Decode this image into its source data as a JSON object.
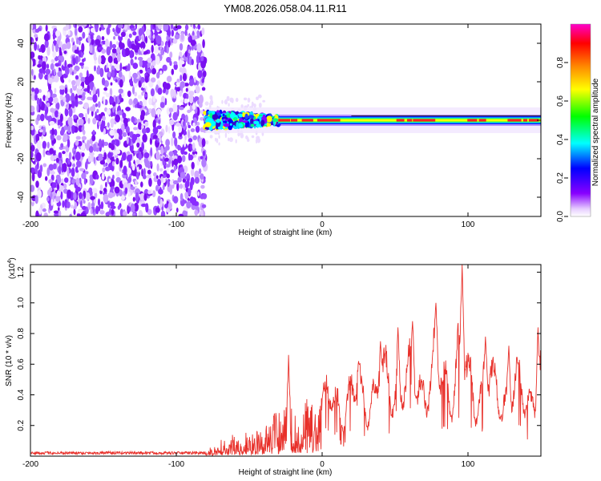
{
  "title": "YM08.2026.058.04.11.R11",
  "spectrogram": {
    "xlabel": "Height of straight line (km)",
    "ylabel": "Frequency (Hz)",
    "xlim": [
      -200,
      150
    ],
    "ylim": [
      -50,
      50
    ],
    "xticks": [
      -200,
      -100,
      0,
      100
    ],
    "xtick_labels": [
      "-200",
      "-100",
      "0",
      "100"
    ],
    "yticks": [
      -40,
      -20,
      0,
      20,
      40
    ],
    "ytick_labels": [
      "-40",
      "-20",
      "0",
      "20",
      "40"
    ],
    "noise_region_end": -80,
    "signal_band": {
      "start": -80,
      "center_freq": 0
    },
    "colorbar": {
      "label": "Normalized spectral amplitude",
      "range": [
        0,
        1
      ],
      "ticks": [
        0.0,
        0.2,
        0.4,
        0.6,
        0.8
      ],
      "tick_labels": [
        "0.0",
        "0.2",
        "0.4",
        "0.6",
        "0.8"
      ],
      "colors": [
        "#ffffff",
        "#8800ff",
        "#0000ff",
        "#00ffff",
        "#00ff00",
        "#ffff00",
        "#ff8800",
        "#ff0000",
        "#ff00cc"
      ]
    }
  },
  "snr_plot": {
    "type": "line",
    "xlabel": "Height of straight line (km)",
    "ylabel": "SNR (10 * v/v)",
    "multiplier_label": "(x10",
    "multiplier_exponent": "4",
    "xlim": [
      -200,
      150
    ],
    "ylim": [
      0,
      1.25
    ],
    "xticks": [
      -200,
      -100,
      0,
      100
    ],
    "xtick_labels": [
      "-200",
      "-100",
      "0",
      "100"
    ],
    "yticks": [
      0.2,
      0.4,
      0.6,
      0.8,
      1.0,
      1.2
    ],
    "ytick_labels": [
      "0.2",
      "0.4",
      "0.6",
      "0.8",
      "1.0",
      "1.2"
    ],
    "color": "#e8302a",
    "envelope": [
      [
        -200,
        0.02
      ],
      [
        -80,
        0.02
      ],
      [
        -75,
        0.08
      ],
      [
        -60,
        0.16
      ],
      [
        -50,
        0.18
      ],
      [
        -40,
        0.22
      ],
      [
        -35,
        0.28
      ],
      [
        -30,
        0.32
      ],
      [
        -25,
        0.5
      ],
      [
        -20,
        0.3
      ],
      [
        -10,
        0.4
      ],
      [
        0,
        0.48
      ],
      [
        10,
        0.5
      ],
      [
        20,
        0.55
      ],
      [
        30,
        0.56
      ],
      [
        40,
        0.62
      ],
      [
        50,
        0.68
      ],
      [
        60,
        0.66
      ],
      [
        70,
        0.72
      ],
      [
        80,
        0.7
      ],
      [
        90,
        0.72
      ],
      [
        95,
        0.9
      ],
      [
        100,
        0.68
      ],
      [
        110,
        0.64
      ],
      [
        120,
        0.6
      ],
      [
        130,
        0.58
      ],
      [
        140,
        0.56
      ],
      [
        150,
        0.7
      ]
    ],
    "peaks": [
      {
        "x": -23,
        "y": 0.66
      },
      {
        "x": 25,
        "y": 0.62
      },
      {
        "x": 40,
        "y": 0.75
      },
      {
        "x": 52,
        "y": 0.84
      },
      {
        "x": 62,
        "y": 0.88
      },
      {
        "x": 78,
        "y": 1.0
      },
      {
        "x": 96,
        "y": 1.25
      },
      {
        "x": 112,
        "y": 0.78
      },
      {
        "x": 128,
        "y": 0.72
      },
      {
        "x": 148,
        "y": 0.84
      }
    ]
  }
}
